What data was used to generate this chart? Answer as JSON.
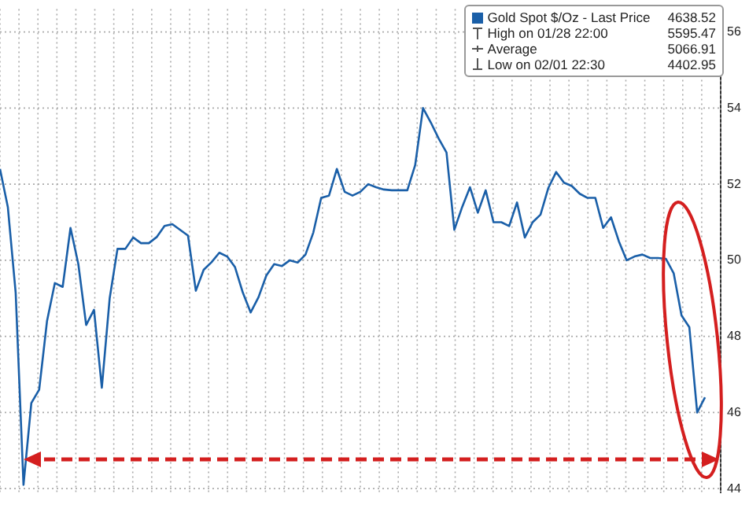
{
  "chart_data": {
    "type": "line",
    "categories": [
      null,
      null,
      null,
      null,
      null,
      null,
      null,
      null,
      null,
      null,
      null,
      null,
      null,
      null,
      null,
      null,
      null,
      null,
      null,
      null,
      null,
      null,
      null,
      null,
      null,
      null,
      null,
      null,
      null,
      null,
      null,
      null,
      null,
      null,
      null,
      null,
      null,
      null,
      null,
      null,
      null,
      null,
      null,
      null,
      null,
      null,
      null,
      null,
      null,
      null,
      null,
      null,
      null,
      null,
      null,
      null,
      null,
      null,
      null,
      null,
      null,
      null,
      null,
      null,
      null,
      null,
      null,
      null,
      null,
      null,
      null,
      null,
      null,
      null,
      null,
      null,
      null,
      null,
      null,
      null,
      null,
      null,
      null,
      null,
      null,
      null,
      null,
      null,
      null,
      null,
      null,
      null,
      null
    ],
    "series": [
      {
        "name": "Gold Spot $/Oz - Last Price",
        "color": "#1a5fa8",
        "values": [
          52.4,
          51.4,
          49.15,
          44.1,
          46.25,
          46.6,
          48.4,
          49.4,
          49.3,
          50.85,
          49.9,
          48.3,
          48.7,
          46.65,
          49.0,
          50.3,
          50.3,
          50.6,
          50.45,
          50.45,
          50.61,
          50.9,
          50.95,
          50.8,
          50.65,
          49.2,
          49.75,
          49.95,
          50.2,
          50.1,
          49.82,
          49.15,
          48.63,
          49.03,
          49.6,
          49.9,
          49.85,
          50.0,
          49.94,
          50.15,
          50.73,
          51.64,
          51.7,
          52.4,
          51.8,
          51.7,
          51.8,
          52.0,
          51.92,
          51.86,
          51.84,
          51.84,
          51.84,
          52.5,
          54.0,
          53.62,
          53.2,
          52.83,
          50.8,
          51.4,
          51.92,
          51.25,
          51.84,
          51.0,
          51.0,
          50.9,
          51.52,
          50.6,
          51.0,
          51.2,
          51.9,
          52.32,
          52.04,
          51.95,
          51.75,
          51.64,
          51.64,
          50.85,
          51.13,
          50.5,
          50.0,
          50.1,
          50.15,
          50.06,
          50.06,
          50.04,
          49.66,
          48.55,
          48.24,
          46.0,
          46.4,
          null,
          null
        ]
      }
    ],
    "ylim": [
      43.9,
      56.6
    ],
    "yticks": [
      44,
      46,
      48,
      50,
      52,
      54,
      56
    ],
    "grid": true,
    "legend": "top right",
    "marker": "none",
    "line_style": "solid",
    "annotations": [
      "4638.52",
      "High on 01/28 22:00",
      "5595.47",
      "Average",
      "5066.91",
      "Low on 02/01 22:30",
      "4402.95"
    ]
  }
}
